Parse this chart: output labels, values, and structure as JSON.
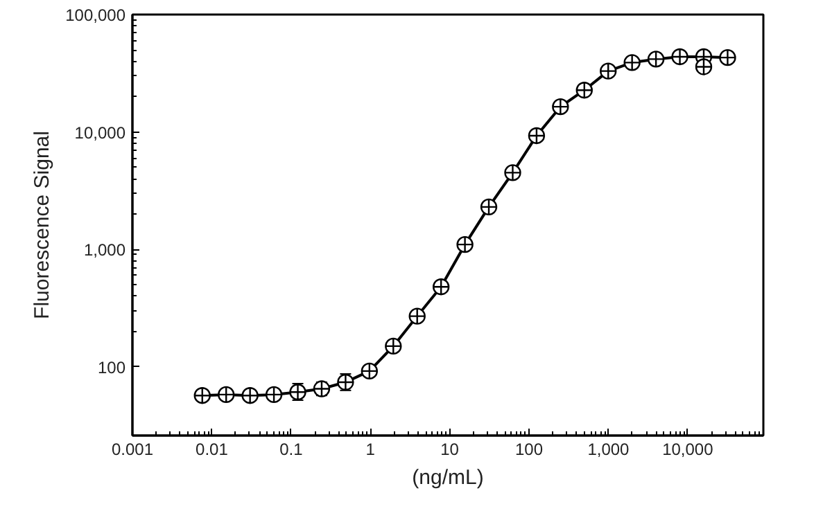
{
  "chart_data": {
    "type": "line",
    "xlabel": "(ng/mL)",
    "ylabel": "Fluorescence Signal",
    "log": "xy",
    "grid": false,
    "marker": "circle",
    "line_style": "solid",
    "x": [
      0.0076,
      0.0152,
      0.0304,
      0.0608,
      0.1216,
      0.2432,
      0.4864,
      0.9728,
      1.9456,
      3.891,
      7.782,
      15.565,
      31.13,
      62.26,
      124.5,
      249,
      498,
      996,
      1992,
      3985,
      7970,
      15940,
      31880
    ],
    "series": [
      {
        "color": "#000000",
        "values": [
          57,
          58,
          57,
          58,
          61,
          65,
          74,
          92,
          150,
          270,
          480,
          1100,
          2300,
          4500,
          9300,
          16400,
          22700,
          33000,
          39000,
          41700,
          43700,
          43700,
          43000
        ],
        "errors": [
          null,
          null,
          null,
          null,
          [
            52,
            72
          ],
          [
            57,
            74
          ],
          [
            63,
            87
          ],
          null,
          null,
          null,
          null,
          null,
          null,
          null,
          null,
          null,
          null,
          null,
          null,
          null,
          null,
          null,
          null
        ]
      },
      {
        "type": "scatter",
        "color": "#000000",
        "x": [
          15940
        ],
        "values": [
          35900
        ]
      }
    ],
    "xlim": [
      0.001,
      90000
    ],
    "ylim": [
      26,
      100000
    ],
    "xticks": [
      0.001,
      0.01,
      0.1,
      1,
      10,
      100,
      {
        "value": 1000,
        "label": "1,000"
      },
      {
        "value": 10000,
        "label": "10,000"
      }
    ],
    "yticks": [
      100,
      {
        "value": 1000,
        "label": "1,000"
      },
      {
        "value": 10000,
        "label": "10,000"
      },
      {
        "value": 100000,
        "label": "100,000"
      }
    ]
  }
}
